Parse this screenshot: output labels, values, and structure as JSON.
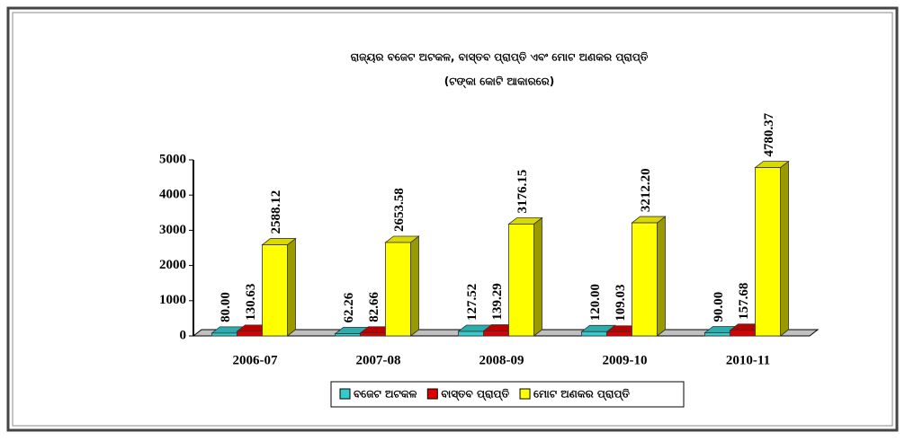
{
  "chart_data": {
    "type": "bar3d",
    "title": "ରାଜ୍ୟର ବଜେଟ ଅଟକଳ, ବାସ୍ତବ ପ୍ରାପ୍ତି ଏବଂ ମୋଟ ଅଣକର ପ୍ରାପ୍ତି",
    "subtitle": "(ଟଙ୍କା କୋଟି ଆକାରରେ)",
    "categories": [
      "2006-07",
      "2007-08",
      "2008-09",
      "2009-10",
      "2010-11"
    ],
    "series": [
      {
        "name": "ବଜେଟ ଅଟକଳ",
        "color": "#33cccc",
        "values": [
          80,
          62.26,
          127.52,
          120,
          90
        ],
        "value_labels": [
          "80.00",
          "62.26",
          "127.52",
          "120.00",
          "90.00"
        ]
      },
      {
        "name": "ବାସ୍ତବ ପ୍ରାପ୍ତି",
        "color": "#dd0000",
        "values": [
          130.63,
          82.66,
          139.29,
          109.03,
          157.68
        ],
        "value_labels": [
          "130.63",
          "82.66",
          "139.29",
          "109.03",
          "157.68"
        ]
      },
      {
        "name": "ମୋଟ ଅଣକର ପ୍ରାପ୍ତି",
        "color": "#ffff00",
        "values": [
          2588.12,
          2653.58,
          3176.15,
          3212.2,
          4780.37
        ],
        "value_labels": [
          "2588.12",
          "2653.58",
          "3176.15",
          "3212.20",
          "4780.37"
        ]
      }
    ],
    "ylim": [
      0,
      5000
    ],
    "yticks": [
      0,
      1000,
      2000,
      3000,
      4000,
      5000
    ],
    "legend": "bottom"
  }
}
